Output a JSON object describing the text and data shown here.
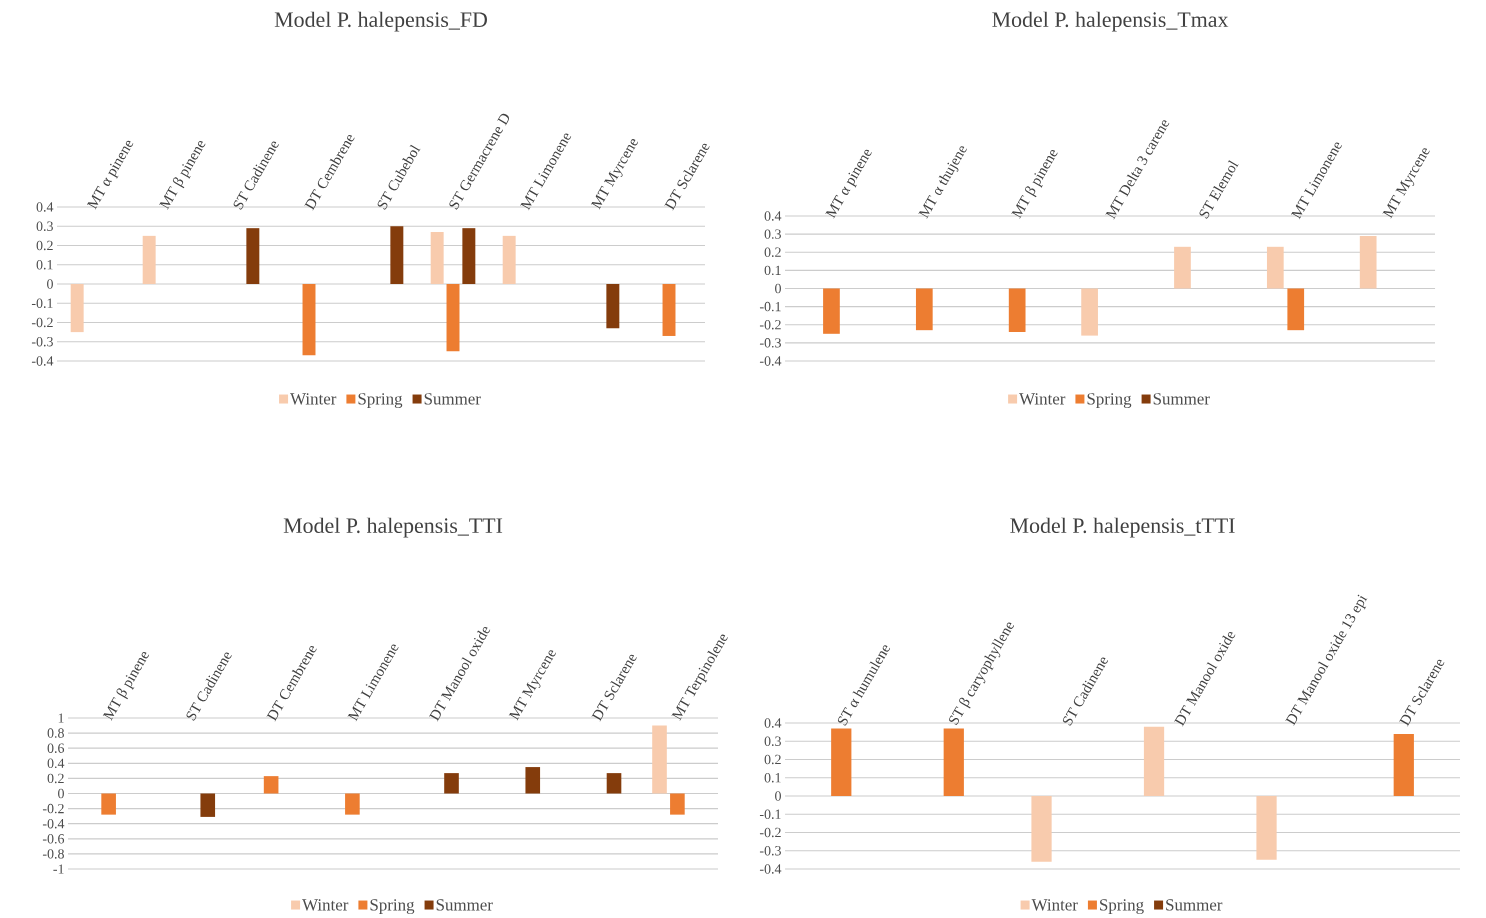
{
  "chart_data": [
    {
      "type": "bar",
      "title": "Model P. halepensis_FD",
      "categories": [
        "MT α pinene",
        "MT β pinene",
        "ST Cadinene",
        "DT Cembrene",
        "ST Cubebol",
        "ST Germacrene D",
        "MT Limonene",
        "MT Myrcene",
        "DT Sclarene"
      ],
      "series": [
        {
          "name": "Winter",
          "color": "#f8cbad",
          "values": [
            -0.25,
            0.25,
            null,
            null,
            null,
            0.27,
            0.25,
            null,
            null
          ]
        },
        {
          "name": "Spring",
          "color": "#ed7d31",
          "values": [
            null,
            null,
            null,
            -0.37,
            null,
            -0.35,
            null,
            null,
            -0.27
          ]
        },
        {
          "name": "Summer",
          "color": "#843c0c",
          "values": [
            null,
            null,
            0.29,
            null,
            0.3,
            0.29,
            null,
            -0.23,
            null
          ]
        }
      ],
      "ylim": [
        -0.4,
        0.4
      ],
      "yticks": [
        -0.4,
        -0.3,
        -0.2,
        -0.1,
        0,
        0.1,
        0.2,
        0.3,
        0.4
      ],
      "grid": "y",
      "legend": "bottom"
    },
    {
      "type": "bar",
      "title": "Model P. halepensis_Tmax",
      "categories": [
        "MT α pinene",
        "MT α thujene",
        "MT β pinene",
        "MT Delta 3 carene",
        "ST Elemol",
        "MT Limonene",
        "MT Myrcene"
      ],
      "series": [
        {
          "name": "Winter",
          "color": "#f8cbad",
          "values": [
            null,
            null,
            null,
            -0.26,
            0.23,
            0.23,
            0.29
          ]
        },
        {
          "name": "Spring",
          "color": "#ed7d31",
          "values": [
            -0.25,
            -0.23,
            -0.24,
            null,
            null,
            -0.23,
            null
          ]
        },
        {
          "name": "Summer",
          "color": "#843c0c",
          "values": [
            null,
            null,
            null,
            null,
            null,
            null,
            null
          ]
        }
      ],
      "ylim": [
        -0.4,
        0.4
      ],
      "yticks": [
        -0.4,
        -0.3,
        -0.2,
        -0.1,
        0,
        0.1,
        0.2,
        0.3,
        0.4
      ],
      "grid": "y",
      "legend": "bottom"
    },
    {
      "type": "bar",
      "title": "Model P. halepensis_TTI",
      "categories": [
        "MT β pinene",
        "ST Cadinene",
        "DT Cembrene",
        "MT Limonene",
        "DT Manool oxide",
        "MT Myrcene",
        "DT Sclarene",
        "MT Terpinolene"
      ],
      "series": [
        {
          "name": "Winter",
          "color": "#f8cbad",
          "values": [
            null,
            null,
            null,
            null,
            null,
            null,
            null,
            0.9
          ]
        },
        {
          "name": "Spring",
          "color": "#ed7d31",
          "values": [
            -0.28,
            null,
            0.23,
            -0.28,
            null,
            null,
            null,
            -0.28
          ]
        },
        {
          "name": "Summer",
          "color": "#843c0c",
          "values": [
            null,
            -0.31,
            null,
            null,
            0.27,
            0.35,
            0.27,
            null
          ]
        }
      ],
      "ylim": [
        -1,
        1
      ],
      "yticks": [
        -1,
        -0.8,
        -0.6,
        -0.4,
        -0.2,
        0,
        0.2,
        0.4,
        0.6,
        0.8,
        1
      ],
      "grid": "y",
      "legend": "bottom"
    },
    {
      "type": "bar",
      "title": "Model P. halepensis_tTTI",
      "categories": [
        "ST α humulene",
        "ST β caryophyllene",
        "ST Cadinene",
        "DT Manool oxide",
        "DT Manool oxide 13 epi",
        "DT Sclarene"
      ],
      "series": [
        {
          "name": "Winter",
          "color": "#f8cbad",
          "values": [
            null,
            null,
            -0.36,
            0.38,
            -0.35,
            null
          ]
        },
        {
          "name": "Spring",
          "color": "#ed7d31",
          "values": [
            0.37,
            0.37,
            null,
            null,
            null,
            0.34
          ]
        },
        {
          "name": "Summer",
          "color": "#843c0c",
          "values": [
            null,
            null,
            null,
            null,
            null,
            null
          ]
        }
      ],
      "ylim": [
        -0.4,
        0.4
      ],
      "yticks": [
        -0.4,
        -0.3,
        -0.2,
        -0.1,
        0,
        0.1,
        0.2,
        0.3,
        0.4
      ],
      "grid": "y",
      "legend": "bottom"
    }
  ]
}
